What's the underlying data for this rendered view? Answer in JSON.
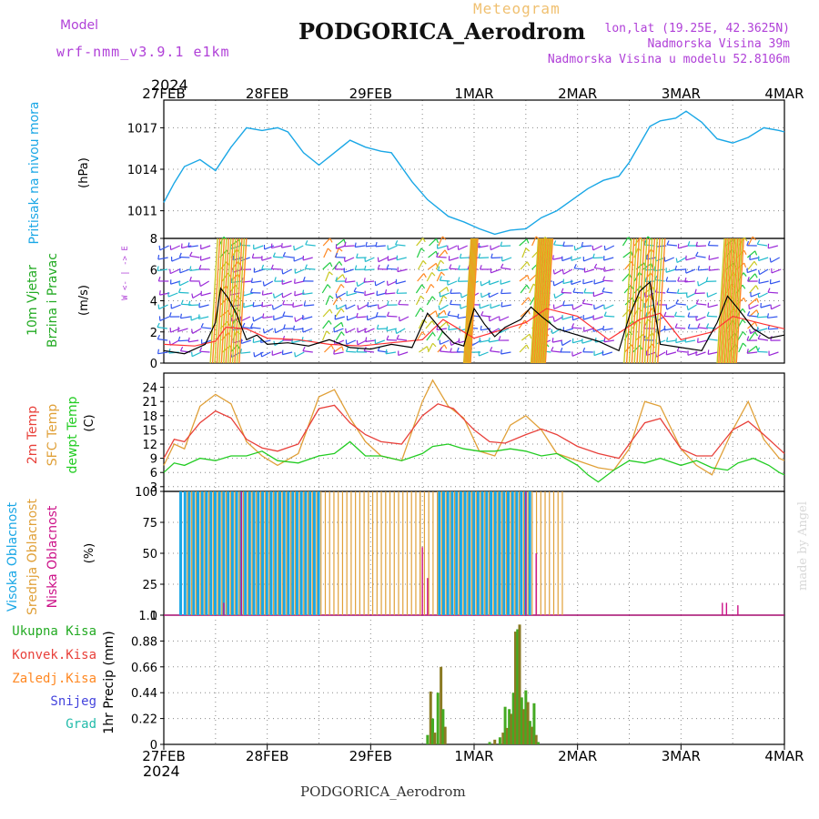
{
  "header": {
    "model_label": "Model",
    "model_name": "wrf-nmm_v3.9.1 e1km",
    "subtitle": "Meteogram",
    "station": "PODGORICA_Aerodrom",
    "lonlat": "lon,lat (19.25E, 42.3625N)",
    "elevation": "Nadmorska Visina 39m",
    "model_elevation": "Nadmorska Visina u modelu 52.8106m",
    "year_top": "2024",
    "year_bottom": "2024",
    "footer_station": "PODGORICA_Aerodrom",
    "credit": "made by Angel"
  },
  "colors": {
    "pressure": "#1aa7e6",
    "wind_line": "#000000",
    "gust": "#ff3333",
    "temp2m": "#e8403a",
    "sfctemp": "#e0a038",
    "dewpt": "#22cc22",
    "cloud_high": "#1aa7e6",
    "cloud_mid": "#e0a038",
    "cloud_low": "#cc1188",
    "rain_total": "#22aa22",
    "rain_conv": "#e8403a",
    "rain_strat": "#ff8822",
    "snow": "#4444dd",
    "hail": "#22bbaa",
    "label_purple": "#b040d8"
  },
  "chart_data": [
    {
      "type": "line",
      "name": "pressure",
      "ylabel_rot": "Pritisak na nivou mora",
      "unit": "(hPa)",
      "ylim": [
        1009,
        1019
      ],
      "yticks": [
        1011,
        1014,
        1017
      ],
      "x_days": [
        0,
        0.1,
        0.2,
        0.35,
        0.5,
        0.65,
        0.8,
        0.95,
        1.1,
        1.2,
        1.35,
        1.5,
        1.65,
        1.8,
        1.95,
        2.1,
        2.2,
        2.4,
        2.55,
        2.75,
        2.9,
        3.05,
        3.2,
        3.35,
        3.5,
        3.65,
        3.8,
        3.95,
        4.1,
        4.25,
        4.4,
        4.5,
        4.6,
        4.7,
        4.8,
        4.95,
        5.05,
        5.2,
        5.35,
        5.5,
        5.65,
        5.8,
        5.95,
        6.0
      ],
      "values": [
        1011.6,
        1013.0,
        1014.2,
        1014.7,
        1013.9,
        1015.6,
        1017.0,
        1016.8,
        1017.0,
        1016.7,
        1015.2,
        1014.3,
        1015.2,
        1016.1,
        1015.6,
        1015.3,
        1015.2,
        1013.1,
        1011.8,
        1010.6,
        1010.2,
        1009.7,
        1009.3,
        1009.6,
        1009.7,
        1010.5,
        1011.0,
        1011.8,
        1012.6,
        1013.2,
        1013.5,
        1014.5,
        1015.8,
        1017.1,
        1017.5,
        1017.7,
        1018.2,
        1017.4,
        1016.2,
        1015.9,
        1016.3,
        1017.0,
        1016.8,
        1016.7
      ]
    },
    {
      "type": "line",
      "name": "wind",
      "ylabel_rot": "10m Vjetar Brzina i Pravac",
      "unit": "(m/s)",
      "ylim": [
        0,
        8
      ],
      "yticks": [
        0,
        2,
        4,
        6,
        8
      ],
      "series": [
        {
          "name": "speed",
          "x_days": [
            0,
            0.2,
            0.4,
            0.5,
            0.55,
            0.62,
            0.7,
            0.8,
            0.9,
            1.0,
            1.2,
            1.4,
            1.6,
            1.8,
            2.0,
            2.2,
            2.4,
            2.55,
            2.7,
            2.8,
            2.9,
            3.0,
            3.1,
            3.2,
            3.3,
            3.45,
            3.55,
            3.65,
            3.8,
            4.0,
            4.2,
            4.4,
            4.5,
            4.6,
            4.7,
            4.8,
            5.0,
            5.2,
            5.35,
            5.45,
            5.55,
            5.7,
            5.85,
            6.0
          ],
          "values": [
            0.8,
            0.6,
            1.2,
            2.6,
            4.8,
            4.2,
            3.2,
            1.5,
            1.8,
            1.2,
            1.3,
            1.1,
            1.5,
            1.0,
            0.9,
            1.2,
            1.0,
            3.2,
            2.0,
            1.3,
            1.1,
            3.5,
            2.5,
            1.7,
            2.3,
            2.8,
            3.6,
            3.0,
            2.2,
            1.8,
            1.4,
            0.8,
            3.0,
            4.6,
            5.2,
            1.2,
            1.0,
            0.8,
            2.6,
            4.3,
            3.5,
            2.2,
            1.6,
            1.8
          ]
        },
        {
          "name": "gust",
          "x_days": [
            0,
            0.3,
            0.5,
            0.6,
            0.8,
            1.0,
            1.3,
            1.6,
            1.9,
            2.2,
            2.5,
            2.7,
            3.0,
            3.2,
            3.5,
            3.7,
            4.0,
            4.3,
            4.6,
            4.8,
            5.0,
            5.3,
            5.5,
            5.8,
            6.0
          ],
          "values": [
            1.2,
            1.1,
            1.4,
            2.3,
            2.2,
            1.6,
            1.5,
            1.2,
            1.1,
            1.3,
            1.5,
            2.8,
            1.6,
            2.0,
            2.6,
            3.5,
            3.0,
            1.5,
            2.8,
            3.2,
            1.5,
            2.0,
            3.0,
            2.5,
            2.2
          ]
        }
      ]
    },
    {
      "type": "line",
      "name": "temperature",
      "ylabel_rot": [
        "2m Temp",
        "SFC Temp",
        "dewpt Temp"
      ],
      "unit": "(C)",
      "ylim": [
        2,
        27
      ],
      "yticks": [
        3,
        6,
        9,
        12,
        15,
        18,
        21,
        24
      ],
      "series": [
        {
          "name": "2m Temp",
          "x_days": [
            0,
            0.1,
            0.2,
            0.35,
            0.5,
            0.65,
            0.8,
            0.95,
            1.1,
            1.3,
            1.5,
            1.65,
            1.8,
            1.95,
            2.1,
            2.3,
            2.5,
            2.65,
            2.8,
            3.0,
            3.15,
            3.3,
            3.5,
            3.65,
            3.8,
            4.0,
            4.2,
            4.4,
            4.5,
            4.65,
            4.8,
            5.0,
            5.15,
            5.3,
            5.5,
            5.65,
            5.8,
            5.95,
            6.0
          ],
          "values": [
            9,
            13,
            12.5,
            16.5,
            19,
            17.5,
            13,
            11.2,
            10.5,
            12,
            19.5,
            20.2,
            16.5,
            14,
            12.5,
            12,
            18,
            20.5,
            19.5,
            15,
            12.5,
            12.2,
            14,
            15.2,
            14,
            11.5,
            10,
            9,
            12,
            16.5,
            17.4,
            11,
            9.5,
            9.5,
            15,
            16.8,
            14,
            11,
            10
          ]
        },
        {
          "name": "SFC Temp",
          "x_days": [
            0,
            0.1,
            0.2,
            0.35,
            0.5,
            0.65,
            0.8,
            0.95,
            1.1,
            1.3,
            1.5,
            1.65,
            1.8,
            1.95,
            2.1,
            2.3,
            2.5,
            2.6,
            2.75,
            2.9,
            3.05,
            3.2,
            3.35,
            3.5,
            3.65,
            3.8,
            4.0,
            4.2,
            4.35,
            4.5,
            4.65,
            4.8,
            5.0,
            5.15,
            5.3,
            5.5,
            5.65,
            5.8,
            5.95,
            6.0
          ],
          "values": [
            7.5,
            12,
            11,
            20,
            22.5,
            20.5,
            12.5,
            9.5,
            7.5,
            10,
            22,
            23.5,
            17.5,
            12.5,
            9.5,
            8.5,
            21,
            25.5,
            20,
            17.5,
            10.5,
            9.5,
            16,
            18,
            15,
            10,
            8.5,
            7,
            6.5,
            11,
            21,
            20,
            11,
            7.5,
            5.5,
            15,
            21,
            13,
            9,
            8.5
          ]
        },
        {
          "name": "dewpt Temp",
          "x_days": [
            0,
            0.1,
            0.2,
            0.35,
            0.5,
            0.65,
            0.8,
            0.95,
            1.1,
            1.3,
            1.5,
            1.65,
            1.8,
            1.95,
            2.1,
            2.3,
            2.5,
            2.6,
            2.75,
            2.9,
            3.05,
            3.2,
            3.35,
            3.5,
            3.65,
            3.8,
            4.0,
            4.1,
            4.2,
            4.35,
            4.5,
            4.65,
            4.8,
            5.0,
            5.15,
            5.3,
            5.45,
            5.55,
            5.7,
            5.85,
            5.95,
            6.0
          ],
          "values": [
            6,
            8,
            7.5,
            9,
            8.5,
            9.5,
            9.5,
            10.5,
            8.5,
            8,
            9.5,
            10,
            12.5,
            9.5,
            9.5,
            8.5,
            10,
            11.5,
            12,
            11,
            10.5,
            10.5,
            11,
            10.5,
            9.5,
            10,
            7.5,
            5.5,
            4,
            6.5,
            8.5,
            8,
            9,
            7.5,
            8.5,
            7,
            6.5,
            8,
            9,
            7.5,
            6,
            5.5
          ]
        }
      ]
    },
    {
      "type": "bar",
      "name": "cloud_cover",
      "ylabel_rot": [
        "Visoka Oblacnost",
        "Srednja Oblacnost",
        "Niska Oblacnost"
      ],
      "unit": "(%)",
      "ylim": [
        0,
        100
      ],
      "yticks": [
        0,
        25,
        50,
        75,
        100
      ],
      "series": [
        {
          "name": "Visoka Oblacnost",
          "ranges_days": [
            [
              0.15,
              1.5
            ],
            [
              2.65,
              3.55
            ]
          ],
          "value": 100
        },
        {
          "name": "Srednja Oblacnost",
          "ranges_days": [
            [
              0.2,
              2.45
            ],
            [
              2.45,
              3.85
            ]
          ],
          "value": 100
        },
        {
          "name": "Niska Oblacnost",
          "bars": [
            [
              0.58,
              10
            ],
            [
              0.75,
              100
            ],
            [
              2.5,
              55
            ],
            [
              2.55,
              30
            ],
            [
              3.5,
              100
            ],
            [
              3.6,
              50
            ],
            [
              5.4,
              10
            ],
            [
              5.44,
              10
            ],
            [
              5.55,
              8
            ]
          ]
        }
      ]
    },
    {
      "type": "bar",
      "name": "precipitation",
      "ylabel_rot": "1hr Precip (mm)",
      "legend": [
        "Ukupna Kisa",
        "Konvek.Kisa",
        "Zaledj.Kisa",
        "Snijeg",
        "Grad"
      ],
      "ylim": [
        0,
        1.1
      ],
      "yticks": [
        0,
        0.22,
        0.44,
        0.66,
        0.88,
        1.1
      ],
      "x_days": [
        2.55,
        2.58,
        2.6,
        2.62,
        2.65,
        2.68,
        2.7,
        2.72,
        3.15,
        3.2,
        3.25,
        3.28,
        3.3,
        3.32,
        3.34,
        3.36,
        3.38,
        3.4,
        3.42,
        3.44,
        3.46,
        3.48,
        3.5,
        3.52,
        3.54,
        3.56,
        3.58,
        3.6,
        3.62
      ],
      "values": [
        0.08,
        0.45,
        0.22,
        0.1,
        0.44,
        0.66,
        0.3,
        0.15,
        0.02,
        0.04,
        0.06,
        0.1,
        0.32,
        0.14,
        0.3,
        0.26,
        0.44,
        0.96,
        0.98,
        1.02,
        0.4,
        0.3,
        0.46,
        0.36,
        0.2,
        0.15,
        0.35,
        0.08,
        0.02
      ]
    }
  ],
  "x_axis": {
    "days": 6,
    "tick_labels": [
      "27FEB",
      "28FEB",
      "29FEB",
      "1MAR",
      "2MAR",
      "3MAR",
      "4MAR"
    ]
  }
}
